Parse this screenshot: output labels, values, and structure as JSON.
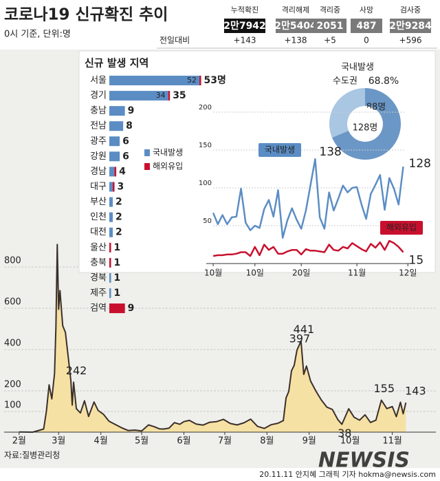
{
  "header": {
    "title": "코로나19 신규확진 추이",
    "subtitle": "0시 기준, 단위:명"
  },
  "stats": {
    "columns": [
      "누적확진",
      "격리해제",
      "격리중",
      "사망",
      "검사중"
    ],
    "totals": [
      "2만7942",
      "2만5404",
      "2051",
      "487",
      "2만9284"
    ],
    "change_label": "전일대비",
    "changes": [
      "+143",
      "+138",
      "+5",
      "0",
      "+596"
    ]
  },
  "chart_data": [
    {
      "type": "hbar",
      "title": "신규 발생 지역",
      "stacked": true,
      "categories": [
        "서울",
        "경기",
        "충남",
        "전남",
        "광주",
        "강원",
        "경남",
        "대구",
        "부산",
        "인천",
        "대전",
        "울산",
        "충북",
        "경북",
        "제주",
        "검역"
      ],
      "series": [
        {
          "name": "국내발생",
          "color": "#5b8dc4",
          "values": [
            52,
            34,
            9,
            8,
            6,
            6,
            3,
            2,
            2,
            2,
            2,
            0,
            0,
            1,
            1,
            0
          ],
          "value_labels": [
            "52",
            "34",
            null,
            null,
            null,
            null,
            null,
            null,
            null,
            null,
            null,
            null,
            null,
            null,
            null,
            null
          ]
        },
        {
          "name": "해외유입",
          "color": "#c8102e",
          "values": [
            1,
            1,
            0,
            0,
            0,
            0,
            1,
            1,
            0,
            0,
            0,
            1,
            1,
            0,
            0,
            9
          ]
        }
      ],
      "total_labels": [
        "53명",
        "35",
        "9",
        "8",
        "6",
        "6",
        "4",
        "3",
        "2",
        "2",
        "2",
        "1",
        "1",
        "1",
        "1",
        "9"
      ]
    },
    {
      "type": "pie",
      "title": "국내발생",
      "share_label": "68.8%",
      "categories": [
        "수도권",
        null
      ],
      "values": [
        88,
        40
      ],
      "value_labels": [
        "88명",
        null
      ],
      "colors": [
        "#6b97c6",
        "#a9c6e3"
      ],
      "center_label": "128명"
    },
    {
      "type": "line",
      "x": [
        1,
        2,
        3,
        4,
        5,
        6,
        7,
        8,
        9,
        10,
        11,
        12,
        13,
        14,
        15,
        16,
        17,
        18,
        19,
        20,
        21,
        22,
        23,
        24,
        25,
        26,
        27,
        28,
        29,
        30,
        31,
        32,
        33,
        34,
        35,
        36,
        37,
        38,
        39,
        40,
        41,
        42
      ],
      "xlim": [
        -0.5,
        44
      ],
      "xticks": [
        {
          "value": 1,
          "label": "10월"
        },
        {
          "value": 10,
          "label": "10일"
        },
        {
          "value": 20,
          "label": "20일"
        },
        {
          "value": 32,
          "label": "11월"
        },
        {
          "value": 43,
          "label": "12일"
        }
      ],
      "ylim": [
        0,
        210
      ],
      "yticks": [
        50,
        100,
        150,
        200
      ],
      "grid": true,
      "series": [
        {
          "name": "국내발생",
          "color": "#5b8dc4",
          "values": [
            67,
            52,
            64,
            52,
            61,
            62,
            99,
            54,
            44,
            50,
            47,
            72,
            84,
            62,
            97,
            34,
            57,
            73,
            58,
            46,
            70,
            104,
            138,
            61,
            46,
            94,
            70,
            86,
            103,
            94,
            100,
            101,
            78,
            59,
            92,
            104,
            117,
            71,
            113,
            99,
            78,
            128
          ],
          "value_labels": [
            null,
            null,
            null,
            null,
            null,
            null,
            null,
            null,
            null,
            null,
            null,
            null,
            null,
            null,
            null,
            null,
            null,
            null,
            null,
            null,
            null,
            null,
            "138",
            null,
            null,
            null,
            null,
            null,
            null,
            null,
            null,
            null,
            null,
            null,
            null,
            null,
            null,
            null,
            null,
            null,
            null,
            "128"
          ]
        },
        {
          "name": "해외유입",
          "color": "#c8102e",
          "values": [
            10,
            11,
            11,
            12,
            12,
            13,
            15,
            15,
            10,
            22,
            11,
            25,
            18,
            22,
            13,
            13,
            16,
            18,
            18,
            12,
            19,
            17,
            17,
            16,
            15,
            25,
            18,
            17,
            22,
            20,
            27,
            23,
            19,
            16,
            26,
            21,
            28,
            18,
            30,
            27,
            22,
            15
          ],
          "value_labels": [
            null,
            null,
            null,
            null,
            null,
            null,
            null,
            null,
            null,
            null,
            null,
            null,
            null,
            null,
            null,
            null,
            null,
            null,
            null,
            null,
            null,
            null,
            null,
            null,
            null,
            null,
            null,
            null,
            null,
            null,
            null,
            null,
            null,
            null,
            null,
            null,
            null,
            null,
            null,
            null,
            null,
            "15"
          ]
        }
      ]
    },
    {
      "type": "area-line",
      "color": "#3a2f2a",
      "fill": "#f6e1a4",
      "x": [
        0,
        10,
        18,
        20,
        22,
        24,
        26,
        27,
        28,
        29,
        30,
        31,
        32,
        34,
        36,
        38,
        39,
        40,
        42,
        45,
        48,
        51,
        55,
        58,
        62,
        66,
        70,
        75,
        80,
        85,
        90,
        95,
        99,
        103,
        106,
        110,
        114,
        118,
        121,
        125,
        130,
        135,
        140,
        145,
        150,
        155,
        160,
        165,
        170,
        175,
        180,
        185,
        190,
        194,
        196,
        198,
        200,
        202,
        204,
        207,
        209,
        211,
        214,
        218,
        222,
        226,
        230,
        234,
        237,
        242,
        246,
        250,
        254,
        258,
        262,
        266,
        270,
        274,
        277,
        280,
        282,
        284
      ],
      "values": [
        1,
        0,
        15,
        100,
        229,
        161,
        284,
        505,
        909,
        595,
        686,
        600,
        516,
        483,
        367,
        248,
        131,
        242,
        114,
        93,
        152,
        76,
        146,
        105,
        86,
        53,
        39,
        22,
        8,
        10,
        6,
        35,
        27,
        16,
        15,
        19,
        46,
        38,
        51,
        57,
        39,
        34,
        48,
        51,
        62,
        42,
        35,
        45,
        63,
        28,
        18,
        36,
        43,
        56,
        166,
        197,
        297,
        324,
        397,
        441,
        280,
        320,
        248,
        198,
        155,
        121,
        110,
        61,
        38,
        113,
        72,
        58,
        84,
        47,
        58,
        155,
        114,
        124,
        75,
        145,
        89,
        143
      ],
      "value_labels": [
        null,
        null,
        null,
        null,
        null,
        null,
        null,
        null,
        null,
        null,
        null,
        null,
        null,
        null,
        null,
        null,
        null,
        "242",
        null,
        null,
        null,
        null,
        null,
        null,
        null,
        null,
        null,
        null,
        null,
        null,
        null,
        null,
        null,
        null,
        null,
        null,
        null,
        null,
        null,
        null,
        null,
        null,
        null,
        null,
        null,
        null,
        null,
        null,
        null,
        null,
        null,
        null,
        null,
        null,
        null,
        null,
        null,
        null,
        "397",
        "441",
        null,
        null,
        null,
        null,
        null,
        null,
        null,
        null,
        "38",
        null,
        null,
        null,
        null,
        null,
        null,
        "155",
        null,
        null,
        null,
        null,
        null,
        "143"
      ],
      "xlim": [
        -9,
        304
      ],
      "xticks": [
        {
          "value": 0,
          "label": "2월"
        },
        {
          "value": 29,
          "label": "3월"
        },
        {
          "value": 60,
          "label": "4월"
        },
        {
          "value": 90,
          "label": "5월"
        },
        {
          "value": 121,
          "label": "6월"
        },
        {
          "value": 151,
          "label": "7월"
        },
        {
          "value": 182,
          "label": "8월"
        },
        {
          "value": 213,
          "label": "9월"
        },
        {
          "value": 243,
          "label": "10월"
        },
        {
          "value": 274,
          "label": "11월"
        }
      ],
      "ylim": [
        0,
        900
      ],
      "yticks": [
        100,
        200,
        400,
        600,
        800
      ],
      "grid": true
    }
  ],
  "footer": {
    "source": "자료:질병관리청",
    "credit": "20.11.11 안지혜 그래픽 기자 hokma@newsis.com",
    "watermark": "NEWSIS"
  }
}
